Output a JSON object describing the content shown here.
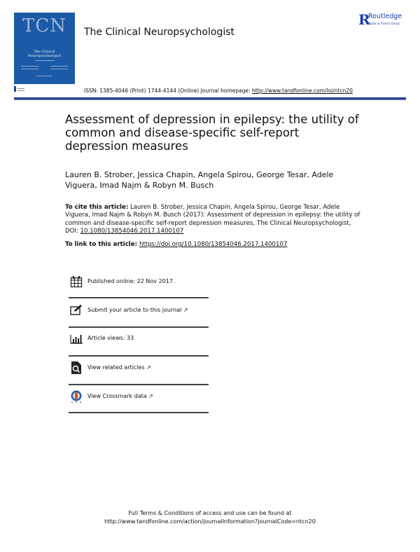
{
  "header": {
    "cover_text": "TCN",
    "cover_subtitle": "The Clinical Neuropsychologist",
    "journal_title": "The Clinical Neuropsychologist",
    "publisher": "Routledge",
    "publisher_tagline": "Taylor & Francis Group",
    "issn_text": "ISSN: 1385-4046 (Print) 1744-4144 (Online) Journal homepage: ",
    "homepage_url": "http://www.tandfonline.com/loi/ntcn20",
    "accent_color": "#23408e"
  },
  "article": {
    "title": "Assessment of depression in epilepsy: the utility of common and disease-specific self-report depression measures",
    "authors": "Lauren B. Strober, Jessica Chapin, Angela Spirou, George Tesar, Adele Viguera, Imad Najm & Robyn M. Busch",
    "cite_label": "To cite this article:",
    "cite_text": " Lauren B. Strober, Jessica Chapin, Angela Spirou, George Tesar, Adele Viguera, Imad Najm & Robyn M. Busch (2017): Assessment of depression in epilepsy: the utility of common and disease-specific self-report depression measures, The Clinical Neuropsychologist, DOI: ",
    "doi": "10.1080/13854046.2017.1400107",
    "link_label": "To link to this article: ",
    "link_url": "https://doi.org/10.1080/13854046.2017.1400107"
  },
  "items": [
    {
      "icon": "calendar-icon",
      "label": "Published online: 22 Nov 2017."
    },
    {
      "icon": "edit-icon",
      "label": "Submit your article to this journal ↗"
    },
    {
      "icon": "bar-chart-icon",
      "label": "Article views: 33"
    },
    {
      "icon": "document-search-icon",
      "label": "View related articles ↗"
    },
    {
      "icon": "crossmark-icon",
      "label": "View Crossmark data ↗"
    }
  ],
  "footer": {
    "line1": "Full Terms & Conditions of access and use can be found at",
    "line2": "http://www.tandfonline.com/action/journalInformation?journalCode=ntcn20"
  }
}
